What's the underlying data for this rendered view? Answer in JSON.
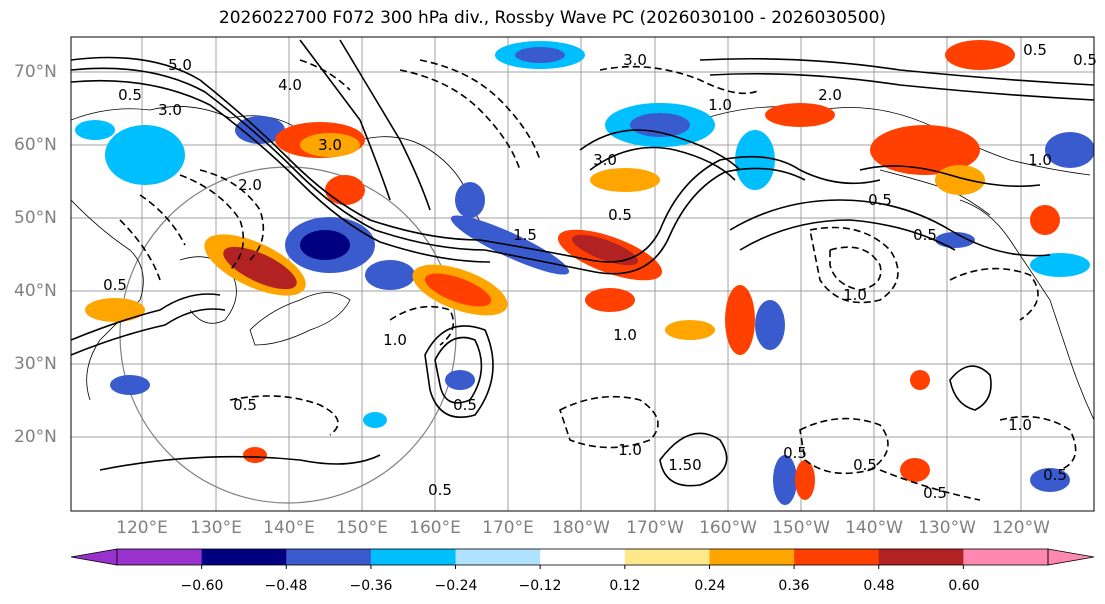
{
  "title": "2026022700 F072 300 hPa div., Rossby Wave PC (2026030100 - 2026030500)",
  "latitude_labels": [
    "70°N",
    "60°N",
    "50°N",
    "40°N",
    "30°N",
    "20°N"
  ],
  "longitude_labels": [
    "120°E",
    "130°E",
    "140°E",
    "150°E",
    "160°E",
    "170°E",
    "180°W",
    "170°W",
    "160°W",
    "150°W",
    "140°W",
    "130°W",
    "120°W"
  ],
  "colorbar": {
    "ticks": [
      "−0.60",
      "−0.48",
      "−0.36",
      "−0.24",
      "−0.12",
      "0.12",
      "0.24",
      "0.36",
      "0.48",
      "0.60"
    ],
    "colors": [
      "#9932cc",
      "#000080",
      "#3a5bcd",
      "#00bfff",
      "#b0e2ff",
      "#ffffff",
      "#ffe88a",
      "#ffa500",
      "#ff4000",
      "#b22222",
      "#ff88b0"
    ]
  },
  "contour_labels": [
    "5.0",
    "3.0",
    "4.0",
    "3.0",
    "2.0",
    "0.5",
    "3.0",
    "1.0",
    "0.5",
    "3.0",
    "2.0",
    "1.0",
    "0.5",
    "1.5",
    "0.5",
    "1.0",
    "0.5",
    "0.5",
    "0.5",
    "0.5",
    "1.0",
    "1.0",
    "0.5",
    "0.5",
    "1.0",
    "1.50",
    "0.5",
    "0.5",
    "0.5",
    "1.0",
    "0.5"
  ]
}
